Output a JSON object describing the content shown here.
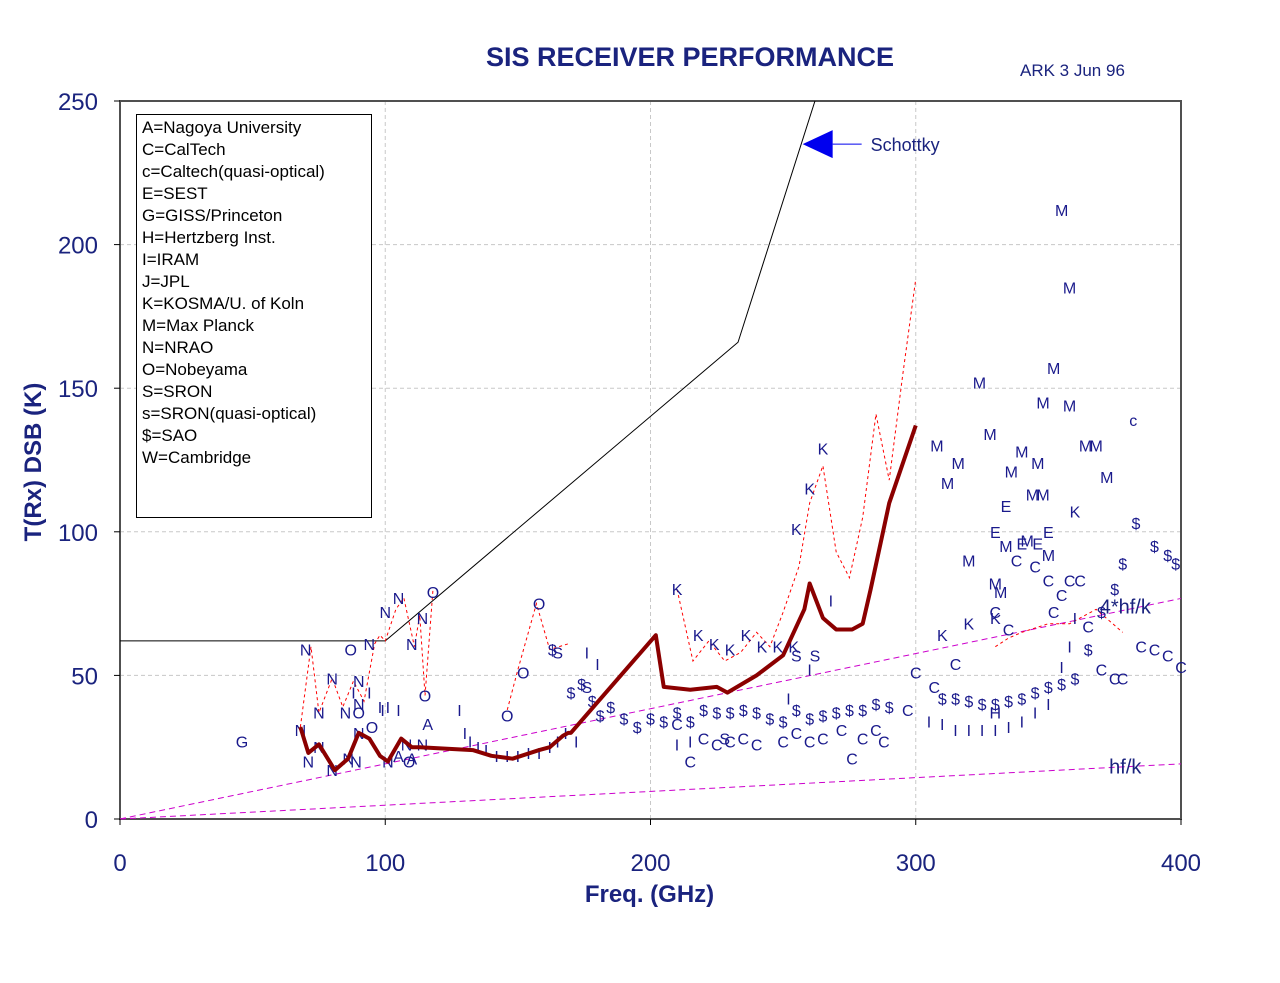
{
  "chart_data": {
    "type": "scatter",
    "title": "SIS RECEIVER PERFORMANCE",
    "credit": "ARK  3 Jun 96",
    "xlabel": "Freq. (GHz)",
    "ylabel": "T(Rx) DSB (K)",
    "xlim": [
      0,
      400
    ],
    "ylim": [
      0,
      250
    ],
    "x_ticks": [
      "0",
      "100",
      "200",
      "300",
      "400"
    ],
    "y_ticks": [
      "0",
      "50",
      "100",
      "150",
      "200",
      "250"
    ],
    "grid": true,
    "legend_position": "top-left",
    "legend": [
      "A=Nagoya University",
      "C=CalTech",
      "c=Caltech(quasi-optical)",
      "E=SEST",
      "G=GISS/Princeton",
      "H=Hertzberg Inst.",
      "I=IRAM",
      "J=JPL",
      "K=KOSMA/U. of Koln",
      "M=Max Planck",
      "N=NRAO",
      "O=Nobeyama",
      "S=SRON",
      "s=SRON(quasi-optical)",
      "$=SAO",
      "W=Cambridge"
    ],
    "reference_lines": [
      {
        "label": "hf/k",
        "x": [
          0,
          400
        ],
        "y": [
          0,
          19.2
        ],
        "color": "#cc00cc"
      },
      {
        "label": "4*hf/k",
        "x": [
          0,
          400
        ],
        "y": [
          0,
          76.8
        ],
        "color": "#cc00cc"
      }
    ],
    "schottky": {
      "label": "Schottky",
      "x": [
        0,
        100,
        233,
        262
      ],
      "y": [
        62,
        62,
        166,
        250
      ],
      "arrow_at": {
        "x": 260,
        "y": 235
      }
    },
    "best_curve": {
      "color": "#8b0000",
      "x": [
        68,
        71,
        75,
        79,
        81,
        86,
        90,
        94,
        98,
        101,
        106,
        110,
        113,
        133,
        140,
        148,
        158,
        162,
        167,
        169,
        170,
        202,
        205,
        215,
        225,
        229,
        240,
        250,
        258,
        260,
        265,
        270,
        276,
        280,
        283,
        290,
        300
      ],
      "y": [
        32,
        23,
        26,
        20,
        17,
        21,
        30,
        28,
        22,
        20,
        28,
        25,
        25,
        24,
        22,
        21,
        24,
        25,
        29,
        30,
        30,
        64,
        46,
        45,
        46,
        44,
        50,
        57,
        73,
        82,
        70,
        66,
        66,
        68,
        80,
        110,
        137
      ]
    },
    "groups": [
      {
        "x": [
          68,
          72,
          75,
          80,
          84,
          88,
          92,
          96,
          98,
          100,
          104,
          107,
          111,
          113,
          115,
          118
        ],
        "y": [
          32,
          60,
          37,
          49,
          39,
          48,
          41,
          61,
          64,
          62,
          73,
          77,
          60,
          71,
          43,
          80
        ],
        "color": "#ff0000"
      },
      {
        "x": [
          146,
          150,
          157,
          162,
          169
        ],
        "y": [
          38,
          52,
          75,
          59,
          61
        ],
        "color": "#ff0000"
      },
      {
        "x": [
          210,
          216,
          222,
          228,
          234,
          240,
          245,
          250,
          256,
          260,
          265,
          270,
          275,
          280,
          285,
          290,
          295,
          300
        ],
        "y": [
          80,
          55,
          62,
          55,
          58,
          65,
          60,
          72,
          88,
          110,
          123,
          93,
          84,
          105,
          141,
          118,
          154,
          188
        ],
        "color": "#ff0000"
      },
      {
        "x": [
          330,
          335,
          340,
          350,
          358,
          362,
          368,
          378
        ],
        "y": [
          60,
          63,
          65,
          68,
          68,
          70,
          73,
          65
        ],
        "color": "#ff0000"
      }
    ],
    "points": [
      {
        "s": "G",
        "x": 46,
        "y": 27
      },
      {
        "s": "N",
        "x": 68,
        "y": 31
      },
      {
        "s": "N",
        "x": 71,
        "y": 20
      },
      {
        "s": "N",
        "x": 75,
        "y": 25
      },
      {
        "s": "N",
        "x": 80,
        "y": 17
      },
      {
        "s": "N",
        "x": 86,
        "y": 21
      },
      {
        "s": "N",
        "x": 89,
        "y": 20
      },
      {
        "s": "N",
        "x": 70,
        "y": 59
      },
      {
        "s": "N",
        "x": 75,
        "y": 37
      },
      {
        "s": "N",
        "x": 80,
        "y": 49
      },
      {
        "s": "N",
        "x": 85,
        "y": 37
      },
      {
        "s": "N",
        "x": 90,
        "y": 48
      },
      {
        "s": "N",
        "x": 94,
        "y": 61
      },
      {
        "s": "N",
        "x": 100,
        "y": 72
      },
      {
        "s": "N",
        "x": 105,
        "y": 77
      },
      {
        "s": "N",
        "x": 110,
        "y": 61
      },
      {
        "s": "N",
        "x": 114,
        "y": 70
      },
      {
        "s": "N",
        "x": 108,
        "y": 26
      },
      {
        "s": "N",
        "x": 114,
        "y": 26
      },
      {
        "s": "N",
        "x": 90,
        "y": 40
      },
      {
        "s": "N",
        "x": 90,
        "y": 30
      },
      {
        "s": "N",
        "x": 101,
        "y": 20
      },
      {
        "s": "O",
        "x": 87,
        "y": 59
      },
      {
        "s": "O",
        "x": 90,
        "y": 37
      },
      {
        "s": "O",
        "x": 95,
        "y": 32
      },
      {
        "s": "O",
        "x": 118,
        "y": 79
      },
      {
        "s": "O",
        "x": 115,
        "y": 43
      },
      {
        "s": "O",
        "x": 146,
        "y": 36
      },
      {
        "s": "O",
        "x": 152,
        "y": 51
      },
      {
        "s": "O",
        "x": 158,
        "y": 75
      },
      {
        "s": "O",
        "x": 109,
        "y": 20
      },
      {
        "s": "A",
        "x": 116,
        "y": 33
      },
      {
        "s": "A",
        "x": 105,
        "y": 22
      },
      {
        "s": "A",
        "x": 110,
        "y": 21
      },
      {
        "s": "I",
        "x": 88,
        "y": 44
      },
      {
        "s": "I",
        "x": 94,
        "y": 44
      },
      {
        "s": "I",
        "x": 98,
        "y": 39
      },
      {
        "s": "I",
        "x": 99,
        "y": 38
      },
      {
        "s": "I",
        "x": 101,
        "y": 39
      },
      {
        "s": "I",
        "x": 105,
        "y": 38
      },
      {
        "s": "I",
        "x": 128,
        "y": 38
      },
      {
        "s": "I",
        "x": 130,
        "y": 30
      },
      {
        "s": "I",
        "x": 132,
        "y": 27
      },
      {
        "s": "I",
        "x": 135,
        "y": 25
      },
      {
        "s": "I",
        "x": 138,
        "y": 24
      },
      {
        "s": "I",
        "x": 142,
        "y": 22
      },
      {
        "s": "I",
        "x": 146,
        "y": 22
      },
      {
        "s": "I",
        "x": 150,
        "y": 22
      },
      {
        "s": "I",
        "x": 154,
        "y": 23
      },
      {
        "s": "I",
        "x": 158,
        "y": 23
      },
      {
        "s": "I",
        "x": 162,
        "y": 25
      },
      {
        "s": "I",
        "x": 165,
        "y": 27
      },
      {
        "s": "I",
        "x": 168,
        "y": 30
      },
      {
        "s": "I",
        "x": 172,
        "y": 27
      },
      {
        "s": "I",
        "x": 176,
        "y": 58
      },
      {
        "s": "I",
        "x": 180,
        "y": 54
      },
      {
        "s": "I",
        "x": 210,
        "y": 26
      },
      {
        "s": "I",
        "x": 215,
        "y": 27
      },
      {
        "s": "I",
        "x": 268,
        "y": 76
      },
      {
        "s": "I",
        "x": 252,
        "y": 42
      },
      {
        "s": "I",
        "x": 260,
        "y": 52
      },
      {
        "s": "I",
        "x": 305,
        "y": 34
      },
      {
        "s": "I",
        "x": 310,
        "y": 33
      },
      {
        "s": "I",
        "x": 315,
        "y": 31
      },
      {
        "s": "I",
        "x": 320,
        "y": 31
      },
      {
        "s": "I",
        "x": 325,
        "y": 31
      },
      {
        "s": "I",
        "x": 330,
        "y": 31
      },
      {
        "s": "I",
        "x": 335,
        "y": 32
      },
      {
        "s": "I",
        "x": 340,
        "y": 34
      },
      {
        "s": "I",
        "x": 345,
        "y": 37
      },
      {
        "s": "I",
        "x": 350,
        "y": 40
      },
      {
        "s": "I",
        "x": 355,
        "y": 53
      },
      {
        "s": "I",
        "x": 358,
        "y": 60
      },
      {
        "s": "I",
        "x": 360,
        "y": 70
      },
      {
        "s": "S",
        "x": 165,
        "y": 58
      },
      {
        "s": "S",
        "x": 176,
        "y": 46
      },
      {
        "s": "S",
        "x": 228,
        "y": 28
      },
      {
        "s": "S",
        "x": 255,
        "y": 57
      },
      {
        "s": "S",
        "x": 262,
        "y": 57
      },
      {
        "s": "$",
        "x": 163,
        "y": 59
      },
      {
        "s": "$",
        "x": 170,
        "y": 44
      },
      {
        "s": "$",
        "x": 174,
        "y": 47
      },
      {
        "s": "$",
        "x": 178,
        "y": 41
      },
      {
        "s": "$",
        "x": 181,
        "y": 36
      },
      {
        "s": "$",
        "x": 185,
        "y": 39
      },
      {
        "s": "$",
        "x": 190,
        "y": 35
      },
      {
        "s": "$",
        "x": 195,
        "y": 32
      },
      {
        "s": "$",
        "x": 200,
        "y": 35
      },
      {
        "s": "$",
        "x": 205,
        "y": 34
      },
      {
        "s": "$",
        "x": 210,
        "y": 37
      },
      {
        "s": "$",
        "x": 215,
        "y": 34
      },
      {
        "s": "$",
        "x": 220,
        "y": 38
      },
      {
        "s": "$",
        "x": 225,
        "y": 37
      },
      {
        "s": "$",
        "x": 230,
        "y": 37
      },
      {
        "s": "$",
        "x": 235,
        "y": 38
      },
      {
        "s": "$",
        "x": 240,
        "y": 37
      },
      {
        "s": "$",
        "x": 245,
        "y": 35
      },
      {
        "s": "$",
        "x": 250,
        "y": 34
      },
      {
        "s": "$",
        "x": 255,
        "y": 38
      },
      {
        "s": "$",
        "x": 260,
        "y": 35
      },
      {
        "s": "$",
        "x": 265,
        "y": 36
      },
      {
        "s": "$",
        "x": 270,
        "y": 37
      },
      {
        "s": "$",
        "x": 275,
        "y": 38
      },
      {
        "s": "$",
        "x": 280,
        "y": 38
      },
      {
        "s": "$",
        "x": 285,
        "y": 40
      },
      {
        "s": "$",
        "x": 290,
        "y": 39
      },
      {
        "s": "$",
        "x": 310,
        "y": 42
      },
      {
        "s": "$",
        "x": 315,
        "y": 42
      },
      {
        "s": "$",
        "x": 320,
        "y": 41
      },
      {
        "s": "$",
        "x": 325,
        "y": 40
      },
      {
        "s": "$",
        "x": 330,
        "y": 40
      },
      {
        "s": "$",
        "x": 335,
        "y": 41
      },
      {
        "s": "$",
        "x": 340,
        "y": 42
      },
      {
        "s": "$",
        "x": 345,
        "y": 44
      },
      {
        "s": "$",
        "x": 350,
        "y": 46
      },
      {
        "s": "$",
        "x": 355,
        "y": 47
      },
      {
        "s": "$",
        "x": 360,
        "y": 49
      },
      {
        "s": "$",
        "x": 365,
        "y": 59
      },
      {
        "s": "$",
        "x": 370,
        "y": 72
      },
      {
        "s": "$",
        "x": 375,
        "y": 80
      },
      {
        "s": "$",
        "x": 378,
        "y": 89
      },
      {
        "s": "$",
        "x": 383,
        "y": 103
      },
      {
        "s": "$",
        "x": 390,
        "y": 95
      },
      {
        "s": "$",
        "x": 395,
        "y": 92
      },
      {
        "s": "$",
        "x": 398,
        "y": 89
      },
      {
        "s": "C",
        "x": 210,
        "y": 33
      },
      {
        "s": "C",
        "x": 215,
        "y": 20
      },
      {
        "s": "C",
        "x": 220,
        "y": 28
      },
      {
        "s": "C",
        "x": 225,
        "y": 26
      },
      {
        "s": "C",
        "x": 230,
        "y": 27
      },
      {
        "s": "C",
        "x": 235,
        "y": 28
      },
      {
        "s": "C",
        "x": 240,
        "y": 26
      },
      {
        "s": "C",
        "x": 250,
        "y": 27
      },
      {
        "s": "C",
        "x": 255,
        "y": 30
      },
      {
        "s": "C",
        "x": 260,
        "y": 27
      },
      {
        "s": "C",
        "x": 265,
        "y": 28
      },
      {
        "s": "C",
        "x": 272,
        "y": 31
      },
      {
        "s": "C",
        "x": 276,
        "y": 21
      },
      {
        "s": "C",
        "x": 280,
        "y": 28
      },
      {
        "s": "C",
        "x": 285,
        "y": 31
      },
      {
        "s": "C",
        "x": 288,
        "y": 27
      },
      {
        "s": "C",
        "x": 297,
        "y": 38
      },
      {
        "s": "C",
        "x": 300,
        "y": 51
      },
      {
        "s": "C",
        "x": 307,
        "y": 46
      },
      {
        "s": "C",
        "x": 315,
        "y": 54
      },
      {
        "s": "C",
        "x": 330,
        "y": 72
      },
      {
        "s": "C",
        "x": 335,
        "y": 66
      },
      {
        "s": "C",
        "x": 338,
        "y": 90
      },
      {
        "s": "C",
        "x": 345,
        "y": 88
      },
      {
        "s": "C",
        "x": 350,
        "y": 83
      },
      {
        "s": "C",
        "x": 352,
        "y": 72
      },
      {
        "s": "C",
        "x": 355,
        "y": 78
      },
      {
        "s": "C",
        "x": 358,
        "y": 83
      },
      {
        "s": "C",
        "x": 362,
        "y": 83
      },
      {
        "s": "C",
        "x": 365,
        "y": 67
      },
      {
        "s": "C",
        "x": 370,
        "y": 52
      },
      {
        "s": "C",
        "x": 375,
        "y": 49
      },
      {
        "s": "C",
        "x": 378,
        "y": 49
      },
      {
        "s": "C",
        "x": 385,
        "y": 60
      },
      {
        "s": "C",
        "x": 390,
        "y": 59
      },
      {
        "s": "C",
        "x": 395,
        "y": 57
      },
      {
        "s": "C",
        "x": 400,
        "y": 53
      },
      {
        "s": "K",
        "x": 210,
        "y": 80
      },
      {
        "s": "K",
        "x": 218,
        "y": 64
      },
      {
        "s": "K",
        "x": 224,
        "y": 61
      },
      {
        "s": "K",
        "x": 230,
        "y": 59
      },
      {
        "s": "K",
        "x": 236,
        "y": 64
      },
      {
        "s": "K",
        "x": 242,
        "y": 60
      },
      {
        "s": "K",
        "x": 248,
        "y": 60
      },
      {
        "s": "K",
        "x": 254,
        "y": 60
      },
      {
        "s": "K",
        "x": 255,
        "y": 101
      },
      {
        "s": "K",
        "x": 260,
        "y": 115
      },
      {
        "s": "K",
        "x": 265,
        "y": 129
      },
      {
        "s": "K",
        "x": 310,
        "y": 64
      },
      {
        "s": "K",
        "x": 320,
        "y": 68
      },
      {
        "s": "K",
        "x": 330,
        "y": 70
      },
      {
        "s": "K",
        "x": 360,
        "y": 107
      },
      {
        "s": "M",
        "x": 355,
        "y": 212
      },
      {
        "s": "M",
        "x": 358,
        "y": 185
      },
      {
        "s": "M",
        "x": 352,
        "y": 157
      },
      {
        "s": "M",
        "x": 324,
        "y": 152
      },
      {
        "s": "M",
        "x": 348,
        "y": 145
      },
      {
        "s": "M",
        "x": 358,
        "y": 144
      },
      {
        "s": "M",
        "x": 328,
        "y": 134
      },
      {
        "s": "M",
        "x": 308,
        "y": 130
      },
      {
        "s": "M",
        "x": 316,
        "y": 124
      },
      {
        "s": "M",
        "x": 340,
        "y": 128
      },
      {
        "s": "M",
        "x": 346,
        "y": 124
      },
      {
        "s": "M",
        "x": 336,
        "y": 121
      },
      {
        "s": "M",
        "x": 312,
        "y": 117
      },
      {
        "s": "M",
        "x": 344,
        "y": 113
      },
      {
        "s": "M",
        "x": 348,
        "y": 113
      },
      {
        "s": "M",
        "x": 364,
        "y": 130
      },
      {
        "s": "M",
        "x": 368,
        "y": 130
      },
      {
        "s": "M",
        "x": 372,
        "y": 119
      },
      {
        "s": "M",
        "x": 320,
        "y": 90
      },
      {
        "s": "M",
        "x": 330,
        "y": 82
      },
      {
        "s": "M",
        "x": 334,
        "y": 95
      },
      {
        "s": "M",
        "x": 342,
        "y": 97
      },
      {
        "s": "M",
        "x": 350,
        "y": 92
      },
      {
        "s": "M",
        "x": 332,
        "y": 79
      },
      {
        "s": "E",
        "x": 334,
        "y": 109
      },
      {
        "s": "E",
        "x": 330,
        "y": 100
      },
      {
        "s": "E",
        "x": 340,
        "y": 96
      },
      {
        "s": "E",
        "x": 346,
        "y": 96
      },
      {
        "s": "E",
        "x": 350,
        "y": 100
      },
      {
        "s": "H",
        "x": 330,
        "y": 37
      },
      {
        "s": "c",
        "x": 382,
        "y": 139
      }
    ]
  }
}
